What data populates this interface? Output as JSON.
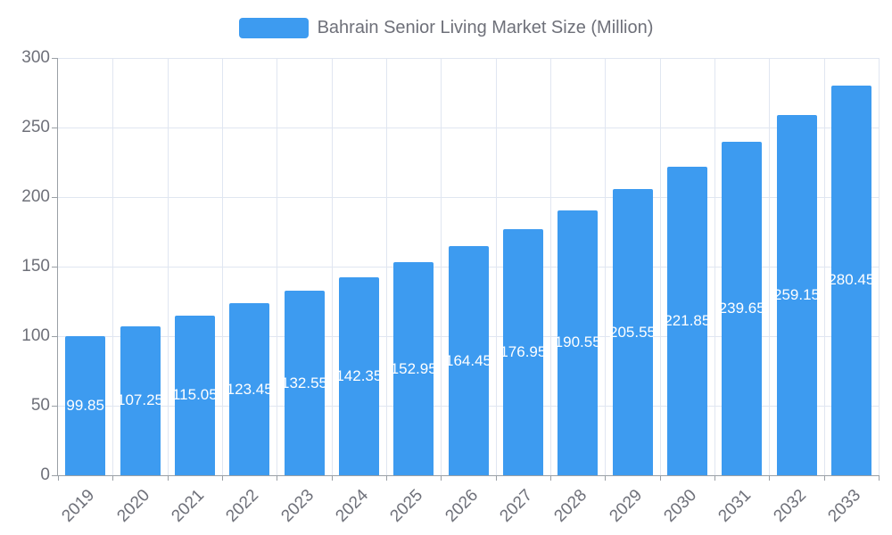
{
  "legend": {
    "label": "Bahrain Senior Living Market Size (Million)"
  },
  "chart_data": {
    "type": "bar",
    "title": "Bahrain Senior Living Market Size (Million)",
    "xlabel": "",
    "ylabel": "",
    "categories": [
      "2019",
      "2020",
      "2021",
      "2022",
      "2023",
      "2024",
      "2025",
      "2026",
      "2027",
      "2028",
      "2029",
      "2030",
      "2031",
      "2032",
      "2033"
    ],
    "values": [
      99.85,
      107.25,
      115.05,
      123.45,
      132.55,
      142.35,
      152.95,
      164.45,
      176.95,
      190.55,
      205.55,
      221.85,
      239.65,
      259.15,
      280.45
    ],
    "value_labels": [
      "99.85",
      "107.25",
      "115.05",
      "123.45",
      "132.55",
      "142.35",
      "152.95",
      "164.45",
      "176.95",
      "190.55",
      "205.55",
      "221.85",
      "239.65",
      "259.15",
      "280.45"
    ],
    "ylim": [
      0,
      300
    ],
    "yticks": [
      0,
      50,
      100,
      150,
      200,
      250,
      300
    ],
    "grid": true,
    "legend_position": "top",
    "bar_color": "#3D9BF0",
    "grid_color": "#E0E6F1",
    "axis_line_color": "#9AA0A6",
    "axis_text_color": "#6E7079",
    "value_label_color": "#FFFFFF",
    "legend_text_color": "#6E7079"
  }
}
